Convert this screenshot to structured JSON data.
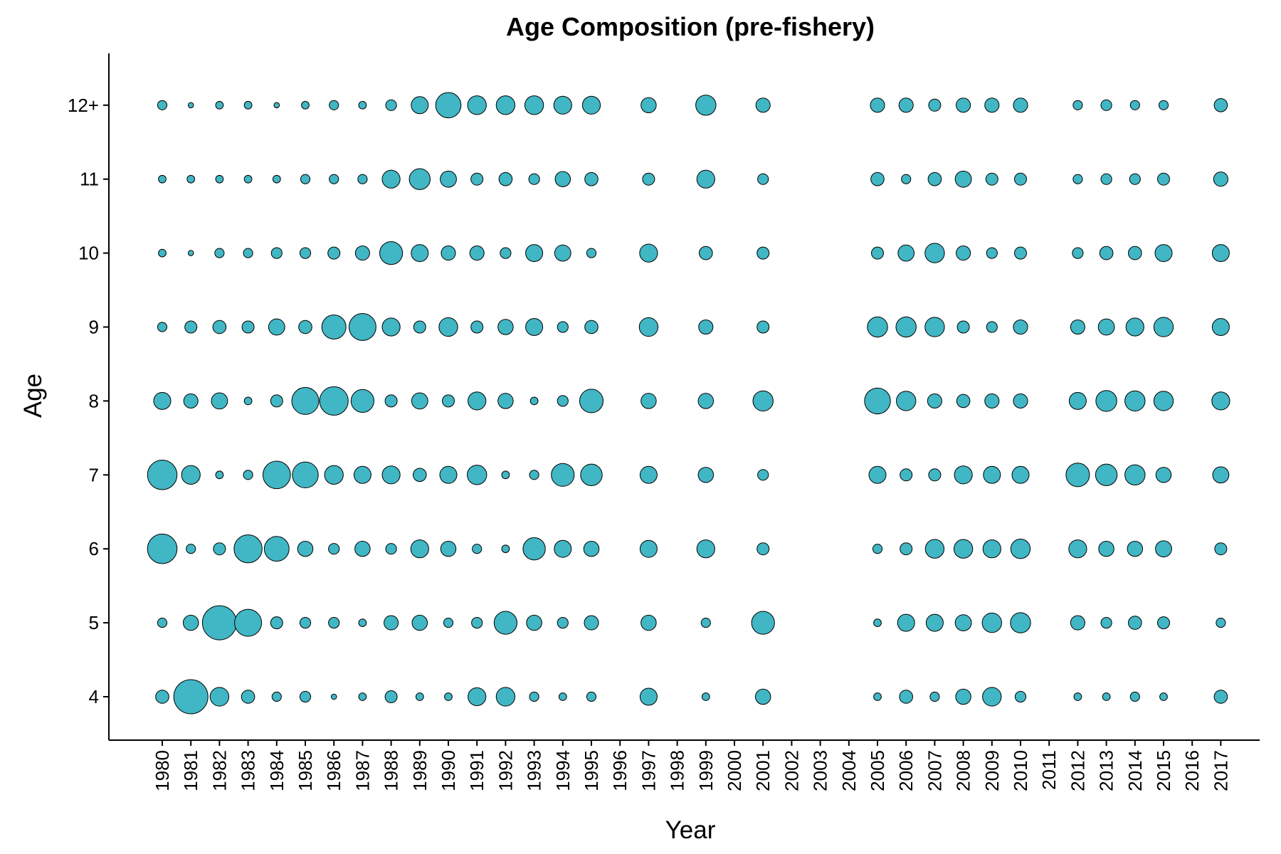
{
  "chart_data": {
    "type": "scatter",
    "title": "Age Composition (pre-fishery)",
    "xlabel": "Year",
    "ylabel": "Age",
    "fill_color": "#41b6c4",
    "stroke_color": "#000000",
    "grid": false,
    "legend": "none",
    "x_categories": [
      "1980",
      "1981",
      "1982",
      "1983",
      "1984",
      "1985",
      "1986",
      "1987",
      "1988",
      "1989",
      "1990",
      "1991",
      "1992",
      "1993",
      "1994",
      "1995",
      "1996",
      "1997",
      "1998",
      "1999",
      "2000",
      "2001",
      "2002",
      "2003",
      "2004",
      "2005",
      "2006",
      "2007",
      "2008",
      "2009",
      "2010",
      "2011",
      "2012",
      "2013",
      "2014",
      "2015",
      "2016",
      "2017"
    ],
    "y_categories": [
      "4",
      "5",
      "6",
      "7",
      "8",
      "9",
      "10",
      "11",
      "12+"
    ],
    "size_encoding": "relative proportion (bubble area)",
    "observed_years": [
      "1980",
      "1981",
      "1982",
      "1983",
      "1984",
      "1985",
      "1986",
      "1987",
      "1988",
      "1989",
      "1990",
      "1991",
      "1992",
      "1993",
      "1994",
      "1995",
      "1997",
      "1999",
      "2001",
      "2005",
      "2006",
      "2007",
      "2008",
      "2009",
      "2010",
      "2012",
      "2013",
      "2014",
      "2015",
      "2017"
    ],
    "series": [
      {
        "year": "1980",
        "values": [
          0.06,
          0.03,
          0.3,
          0.3,
          0.1,
          0.03,
          0.02,
          0.02,
          0.03
        ]
      },
      {
        "year": "1981",
        "values": [
          0.4,
          0.08,
          0.03,
          0.12,
          0.07,
          0.05,
          0.01,
          0.02,
          0.01
        ]
      },
      {
        "year": "1982",
        "values": [
          0.12,
          0.4,
          0.05,
          0.02,
          0.09,
          0.06,
          0.03,
          0.02,
          0.02
        ]
      },
      {
        "year": "1983",
        "values": [
          0.06,
          0.25,
          0.27,
          0.03,
          0.02,
          0.05,
          0.03,
          0.02,
          0.02
        ]
      },
      {
        "year": "1984",
        "values": [
          0.03,
          0.05,
          0.21,
          0.26,
          0.05,
          0.09,
          0.04,
          0.02,
          0.01
        ]
      },
      {
        "year": "1985",
        "values": [
          0.04,
          0.04,
          0.08,
          0.23,
          0.25,
          0.06,
          0.04,
          0.03,
          0.02
        ]
      },
      {
        "year": "1986",
        "values": [
          0.01,
          0.04,
          0.04,
          0.12,
          0.28,
          0.2,
          0.05,
          0.03,
          0.03
        ]
      },
      {
        "year": "1987",
        "values": [
          0.02,
          0.02,
          0.08,
          0.1,
          0.18,
          0.25,
          0.07,
          0.03,
          0.02
        ]
      },
      {
        "year": "1988",
        "values": [
          0.05,
          0.07,
          0.04,
          0.11,
          0.05,
          0.11,
          0.18,
          0.11,
          0.04
        ]
      },
      {
        "year": "1989",
        "values": [
          0.02,
          0.08,
          0.11,
          0.06,
          0.09,
          0.05,
          0.1,
          0.15,
          0.1
        ]
      },
      {
        "year": "1990",
        "values": [
          0.02,
          0.03,
          0.08,
          0.1,
          0.05,
          0.12,
          0.07,
          0.09,
          0.22
        ]
      },
      {
        "year": "1991",
        "values": [
          0.11,
          0.04,
          0.03,
          0.13,
          0.11,
          0.05,
          0.07,
          0.05,
          0.12
        ]
      },
      {
        "year": "1992",
        "values": [
          0.12,
          0.18,
          0.02,
          0.02,
          0.08,
          0.08,
          0.04,
          0.06,
          0.12
        ]
      },
      {
        "year": "1993",
        "values": [
          0.03,
          0.08,
          0.17,
          0.03,
          0.02,
          0.1,
          0.1,
          0.04,
          0.12
        ]
      },
      {
        "year": "1994",
        "values": [
          0.02,
          0.04,
          0.1,
          0.18,
          0.04,
          0.04,
          0.09,
          0.08,
          0.11
        ]
      },
      {
        "year": "1995",
        "values": [
          0.03,
          0.07,
          0.08,
          0.16,
          0.19,
          0.06,
          0.03,
          0.06,
          0.11
        ]
      },
      {
        "year": "1997",
        "values": [
          0.1,
          0.08,
          0.1,
          0.1,
          0.08,
          0.12,
          0.11,
          0.05,
          0.08
        ]
      },
      {
        "year": "1999",
        "values": [
          0.02,
          0.03,
          0.11,
          0.08,
          0.08,
          0.07,
          0.06,
          0.11,
          0.14
        ]
      },
      {
        "year": "2001",
        "values": [
          0.08,
          0.18,
          0.05,
          0.04,
          0.14,
          0.05,
          0.05,
          0.04,
          0.07
        ]
      },
      {
        "year": "2005",
        "values": [
          0.02,
          0.02,
          0.03,
          0.1,
          0.23,
          0.14,
          0.05,
          0.06,
          0.07
        ]
      },
      {
        "year": "2006",
        "values": [
          0.06,
          0.1,
          0.05,
          0.05,
          0.13,
          0.14,
          0.09,
          0.03,
          0.07
        ]
      },
      {
        "year": "2007",
        "values": [
          0.03,
          0.1,
          0.12,
          0.05,
          0.07,
          0.13,
          0.13,
          0.06,
          0.05
        ]
      },
      {
        "year": "2008",
        "values": [
          0.08,
          0.09,
          0.12,
          0.11,
          0.06,
          0.05,
          0.07,
          0.09,
          0.07
        ]
      },
      {
        "year": "2009",
        "values": [
          0.12,
          0.13,
          0.11,
          0.1,
          0.07,
          0.04,
          0.04,
          0.05,
          0.07
        ]
      },
      {
        "year": "2010",
        "values": [
          0.04,
          0.14,
          0.13,
          0.1,
          0.07,
          0.07,
          0.05,
          0.05,
          0.07
        ]
      },
      {
        "year": "2012",
        "values": [
          0.02,
          0.07,
          0.11,
          0.19,
          0.1,
          0.07,
          0.04,
          0.03,
          0.03
        ]
      },
      {
        "year": "2013",
        "values": [
          0.02,
          0.04,
          0.08,
          0.16,
          0.15,
          0.09,
          0.06,
          0.04,
          0.04
        ]
      },
      {
        "year": "2014",
        "values": [
          0.03,
          0.06,
          0.08,
          0.14,
          0.14,
          0.11,
          0.06,
          0.04,
          0.03
        ]
      },
      {
        "year": "2015",
        "values": [
          0.02,
          0.05,
          0.09,
          0.08,
          0.13,
          0.13,
          0.1,
          0.05,
          0.03
        ]
      },
      {
        "year": "2017",
        "values": [
          0.06,
          0.03,
          0.05,
          0.09,
          0.11,
          0.1,
          0.1,
          0.07,
          0.06
        ]
      }
    ]
  }
}
